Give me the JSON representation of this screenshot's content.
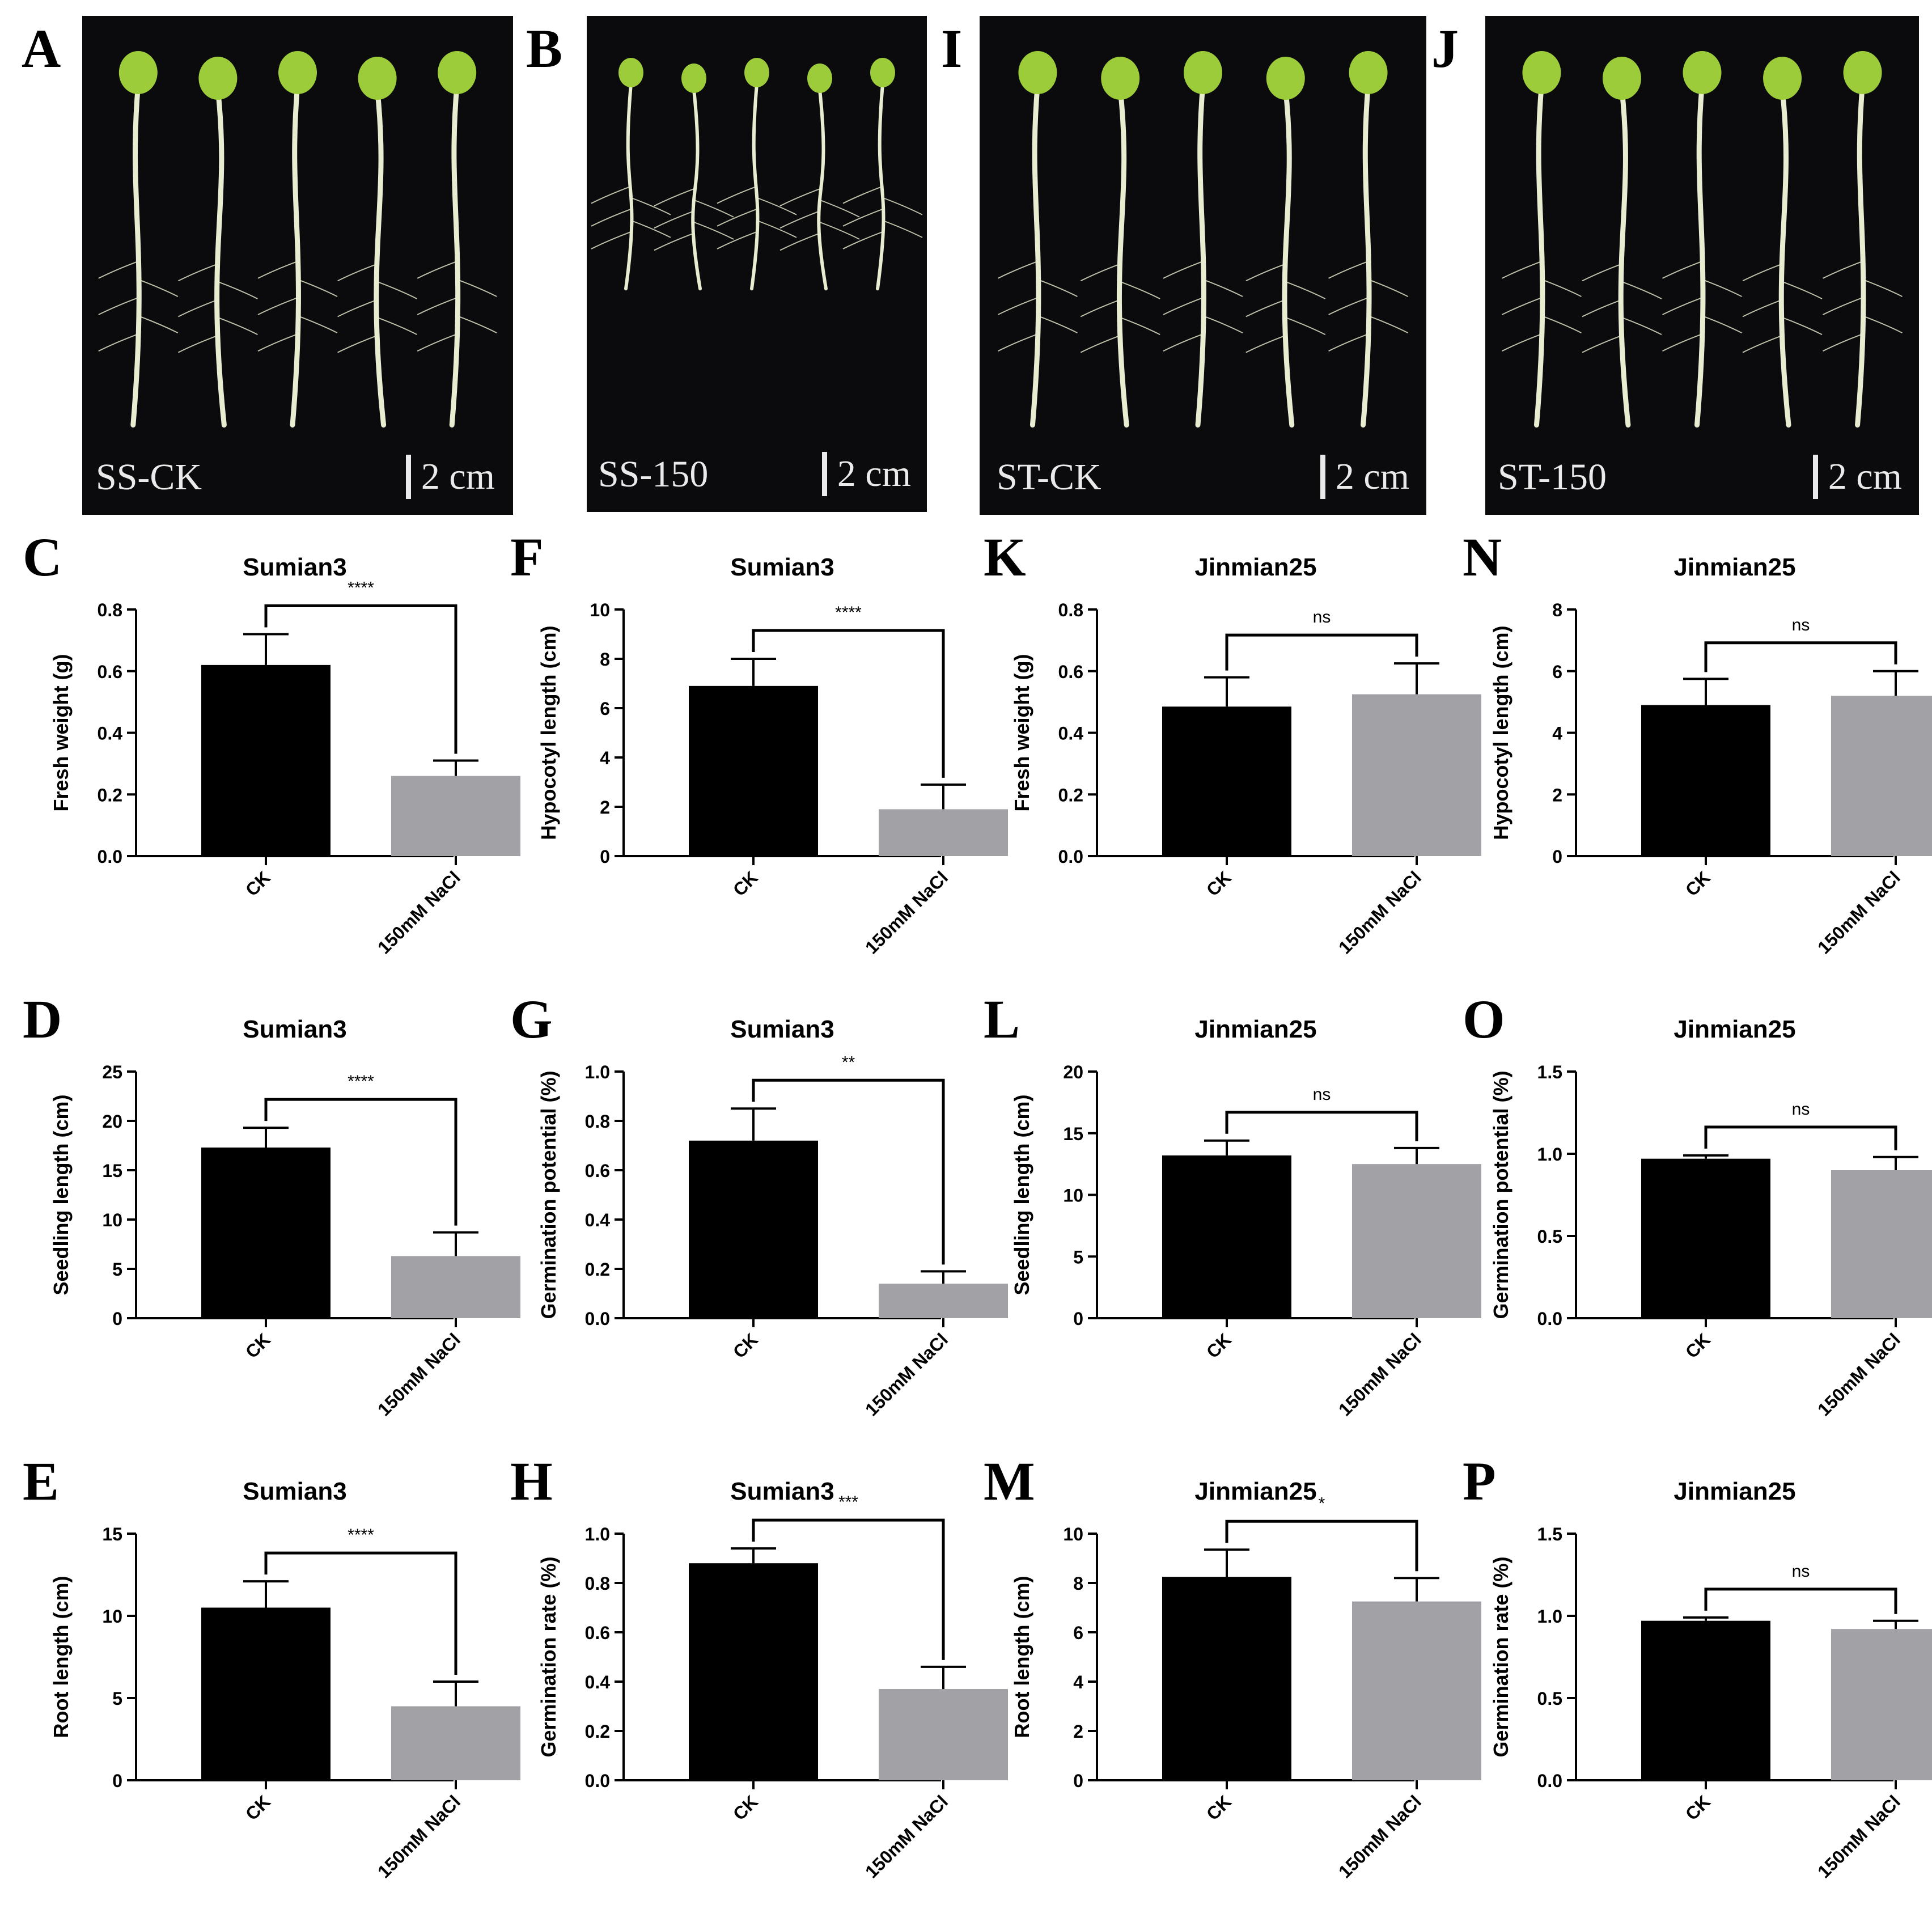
{
  "photos": [
    {
      "letter": "A",
      "label": "SS-CK",
      "scale": "2 cm"
    },
    {
      "letter": "B",
      "label": "SS-150",
      "scale": "2 cm"
    },
    {
      "letter": "I",
      "label": "ST-CK",
      "scale": "2 cm"
    },
    {
      "letter": "J",
      "label": "ST-150",
      "scale": "2 cm"
    }
  ],
  "colors": {
    "ck": "#000000",
    "nacl": "#a2a1a6",
    "photo_bg": "#0b0b0d",
    "seedling": "#e8ecd0",
    "cotyledon": "#9ccc3a"
  },
  "chart_data": [
    {
      "letter": "C",
      "type": "bar",
      "title": "Sumian3",
      "ylabel": "Fresh weight (g)",
      "categories": [
        "CK",
        "150mM NaCl"
      ],
      "values": [
        0.62,
        0.26
      ],
      "errors": [
        0.1,
        0.05
      ],
      "ylim": [
        0,
        0.8
      ],
      "yticks": [
        "0.0",
        "0.2",
        "0.4",
        "0.6",
        "0.8"
      ],
      "significance": "****"
    },
    {
      "letter": "D",
      "type": "bar",
      "title": "Sumian3",
      "ylabel": "Seedling length (cm)",
      "categories": [
        "CK",
        "150mM NaCl"
      ],
      "values": [
        17.3,
        6.3
      ],
      "errors": [
        2.0,
        2.4
      ],
      "ylim": [
        0,
        25
      ],
      "yticks": [
        "0",
        "5",
        "10",
        "15",
        "20",
        "25"
      ],
      "significance": "****"
    },
    {
      "letter": "E",
      "type": "bar",
      "title": "Sumian3",
      "ylabel": "Root length (cm)",
      "categories": [
        "CK",
        "150mM NaCl"
      ],
      "values": [
        10.5,
        4.5
      ],
      "errors": [
        1.6,
        1.5
      ],
      "ylim": [
        0,
        15
      ],
      "yticks": [
        "0",
        "5",
        "10",
        "15"
      ],
      "significance": "****"
    },
    {
      "letter": "F",
      "type": "bar",
      "title": "Sumian3",
      "ylabel": "Hypocotyl length (cm)",
      "categories": [
        "CK",
        "150mM NaCl"
      ],
      "values": [
        6.9,
        1.9
      ],
      "errors": [
        1.1,
        1.0
      ],
      "ylim": [
        0,
        10
      ],
      "yticks": [
        "0",
        "2",
        "4",
        "6",
        "8",
        "10"
      ],
      "significance": "****"
    },
    {
      "letter": "G",
      "type": "bar",
      "title": "Sumian3",
      "ylabel": "Germination potential (%)",
      "categories": [
        "CK",
        "150mM NaCl"
      ],
      "values": [
        0.72,
        0.14
      ],
      "errors": [
        0.13,
        0.05
      ],
      "ylim": [
        0,
        1.0
      ],
      "yticks": [
        "0.0",
        "0.2",
        "0.4",
        "0.6",
        "0.8",
        "1.0"
      ],
      "significance": "**"
    },
    {
      "letter": "H",
      "type": "bar",
      "title": "Sumian3",
      "ylabel": "Germination rate (%)",
      "categories": [
        "CK",
        "150mM NaCl"
      ],
      "values": [
        0.88,
        0.37
      ],
      "errors": [
        0.06,
        0.09
      ],
      "ylim": [
        0,
        1.0
      ],
      "yticks": [
        "0.0",
        "0.2",
        "0.4",
        "0.6",
        "0.8",
        "1.0"
      ],
      "significance": "***"
    },
    {
      "letter": "K",
      "type": "bar",
      "title": "Jinmian25",
      "ylabel": "Fresh weight (g)",
      "categories": [
        "CK",
        "150mM NaCl"
      ],
      "values": [
        0.485,
        0.525
      ],
      "errors": [
        0.095,
        0.1
      ],
      "ylim": [
        0,
        0.8
      ],
      "yticks": [
        "0.0",
        "0.2",
        "0.4",
        "0.6",
        "0.8"
      ],
      "significance": "ns"
    },
    {
      "letter": "L",
      "type": "bar",
      "title": "Jinmian25",
      "ylabel": "Seedling length (cm)",
      "categories": [
        "CK",
        "150mM NaCl"
      ],
      "values": [
        13.2,
        12.5
      ],
      "errors": [
        1.2,
        1.3
      ],
      "ylim": [
        0,
        20
      ],
      "yticks": [
        "0",
        "5",
        "10",
        "15",
        "20"
      ],
      "significance": "ns"
    },
    {
      "letter": "M",
      "type": "bar",
      "title": "Jinmian25",
      "ylabel": "Root length (cm)",
      "categories": [
        "CK",
        "150mM NaCl"
      ],
      "values": [
        8.25,
        7.25
      ],
      "errors": [
        1.1,
        0.95
      ],
      "ylim": [
        0,
        10
      ],
      "yticks": [
        "0",
        "2",
        "4",
        "6",
        "8",
        "10"
      ],
      "significance": "*"
    },
    {
      "letter": "N",
      "type": "bar",
      "title": "Jinmian25",
      "ylabel": "Hypocotyl length (cm)",
      "categories": [
        "CK",
        "150mM NaCl"
      ],
      "values": [
        4.9,
        5.2
      ],
      "errors": [
        0.85,
        0.8
      ],
      "ylim": [
        0,
        8
      ],
      "yticks": [
        "0",
        "2",
        "4",
        "6",
        "8"
      ],
      "significance": "ns"
    },
    {
      "letter": "O",
      "type": "bar",
      "title": "Jinmian25",
      "ylabel": "Germination potential (%)",
      "categories": [
        "CK",
        "150mM NaCl"
      ],
      "values": [
        0.97,
        0.9
      ],
      "errors": [
        0.02,
        0.08
      ],
      "ylim": [
        0,
        1.5
      ],
      "yticks": [
        "0.0",
        "0.5",
        "1.0",
        "1.5"
      ],
      "significance": "ns"
    },
    {
      "letter": "P",
      "type": "bar",
      "title": "Jinmian25",
      "ylabel": "Germination rate (%)",
      "categories": [
        "CK",
        "150mM NaCl"
      ],
      "values": [
        0.97,
        0.92
      ],
      "errors": [
        0.02,
        0.05
      ],
      "ylim": [
        0,
        1.5
      ],
      "yticks": [
        "0.0",
        "0.5",
        "1.0",
        "1.5"
      ],
      "significance": "ns"
    }
  ]
}
